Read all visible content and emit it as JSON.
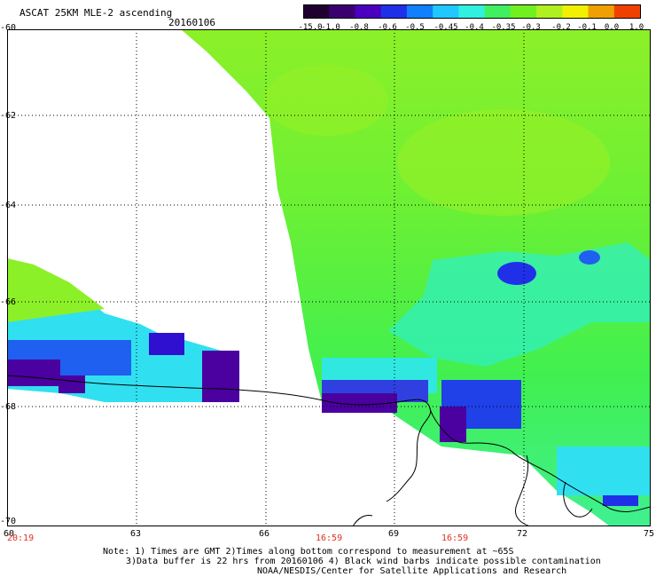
{
  "header": {
    "title": "ASCAT 25KM MLE-2 ascending",
    "date": "20160106"
  },
  "colorbar": {
    "labels": [
      "-15.0",
      "-1.0",
      "-0.8",
      "-0.6",
      "-0.5",
      "-0.45",
      "-0.4",
      "-0.35",
      "-0.3",
      "-0.2",
      "-0.1",
      "0.0",
      "1.0"
    ],
    "colors": [
      "#200030",
      "#3a0070",
      "#4b00c0",
      "#2030e8",
      "#1080ff",
      "#20c8ff",
      "#30f0e0",
      "#40f060",
      "#70f020",
      "#b0f020",
      "#f0f000",
      "#f0a000",
      "#f04000"
    ]
  },
  "map": {
    "lat_labels": [
      "-60",
      "-62",
      "-64",
      "-66",
      "-68",
      "-70"
    ],
    "lon_labels": [
      "60",
      "63",
      "66",
      "69",
      "72",
      "75"
    ],
    "pass_times": [
      "20:19",
      "16:59",
      "16:59"
    ]
  },
  "notes": {
    "line1": "Note: 1) Times are GMT 2)Times along bottom correspond to measurement at ~65S",
    "line2": "3)Data buffer is 22 hrs from 20160106 4) Black wind barbs indicate possible contamination",
    "line3": "NOAA/NESDIS/Center for Satellite Applications and Research"
  }
}
